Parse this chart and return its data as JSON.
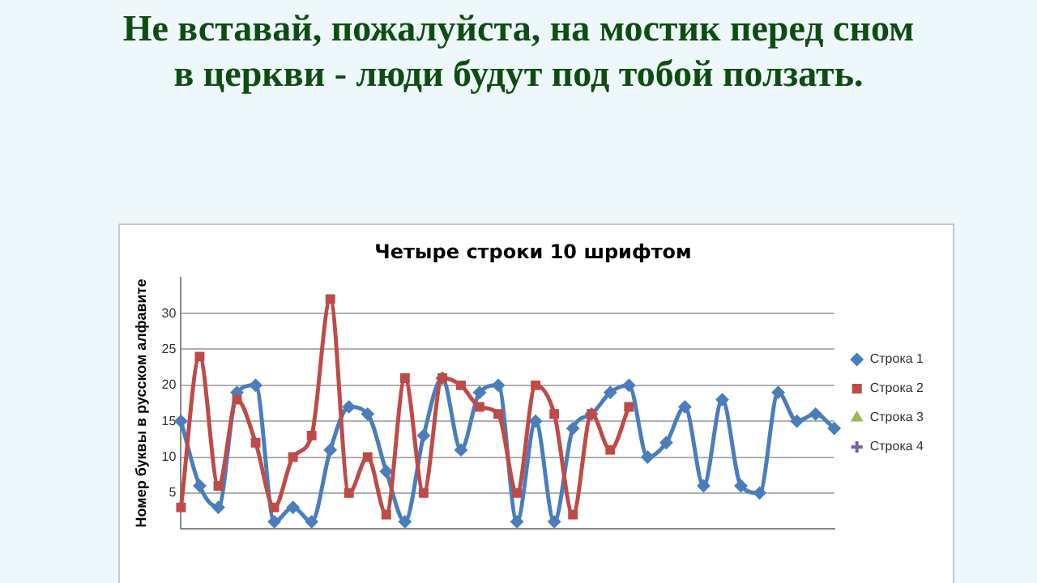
{
  "chart_data": {
    "type": "line",
    "title": "Четыре строки 10 шрифтом",
    "ylabel": "Номер буквы в русском алфавите",
    "annotations": [
      "Не вставай, пожалуйста, на мостик перед сном\nв церкви - люди будут под тобой ползать."
    ],
    "categories": [
      null,
      null,
      null,
      null,
      null,
      null,
      null,
      null,
      null,
      null,
      null,
      null,
      null,
      null,
      null,
      null,
      null,
      null,
      null,
      null,
      null,
      null,
      null,
      null,
      null,
      null,
      null,
      null,
      null,
      null,
      null,
      null,
      null,
      null,
      null,
      null
    ],
    "series": [
      {
        "name": "Строка 1",
        "color": "#4a7ebb",
        "marker": "diamond",
        "values": [
          15,
          6,
          3,
          19,
          20,
          1,
          3,
          1,
          11,
          17,
          16,
          8,
          1,
          13,
          21,
          11,
          19,
          20,
          1,
          15,
          1,
          14,
          16,
          19,
          20,
          10,
          12,
          17,
          6,
          18,
          6,
          5,
          19,
          15,
          16,
          14
        ]
      },
      {
        "name": "Строка 2",
        "color": "#be4b48",
        "marker": "square",
        "values": [
          3,
          24,
          6,
          18,
          12,
          3,
          10,
          13,
          32,
          5,
          10,
          2,
          21,
          5,
          21,
          20,
          17,
          16,
          5,
          20,
          16,
          2,
          16,
          11,
          17,
          null,
          null,
          null,
          null,
          null,
          null,
          null,
          null,
          null,
          null,
          null
        ]
      },
      {
        "name": "Строка 3",
        "color": "#98b954",
        "marker": "triangle",
        "values": [
          null,
          null,
          null,
          null,
          null,
          null,
          null,
          null,
          null,
          null,
          null,
          null,
          null,
          null,
          null,
          null,
          null,
          null,
          null,
          null,
          null,
          null,
          null,
          null,
          null,
          null,
          null,
          null,
          null,
          null,
          null,
          null,
          null,
          null,
          null,
          null
        ]
      },
      {
        "name": "Строка 4",
        "color": "#7d60a0",
        "marker": "cross",
        "values": [
          null,
          null,
          null,
          null,
          null,
          null,
          null,
          null,
          null,
          null,
          null,
          null,
          null,
          null,
          null,
          null,
          null,
          null,
          null,
          null,
          null,
          null,
          null,
          null,
          null,
          null,
          null,
          null,
          null,
          null,
          null,
          null,
          null,
          null,
          null,
          null
        ]
      }
    ],
    "ylim": [
      0,
      35
    ],
    "yticks": [
      5,
      10,
      15,
      20,
      25,
      30
    ],
    "grid": "y",
    "legend": "right",
    "line_style": "solid"
  }
}
